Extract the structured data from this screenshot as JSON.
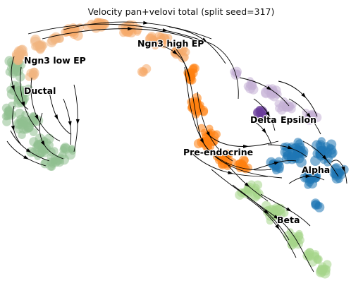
{
  "chart_data": {
    "type": "scatter",
    "title": "Velocity pan+velovi total (split seed=317)",
    "xlabel": "",
    "ylabel": "",
    "axes": "off",
    "grid": false,
    "legend": "on-data labels",
    "clusters": [
      {
        "name": "Ngn3 low EP",
        "color": "#f0b57f"
      },
      {
        "name": "Ngn3 high EP",
        "color": "#f6a96a"
      },
      {
        "name": "Ductal",
        "color": "#8fbf8f"
      },
      {
        "name": "Delta",
        "color": "#6a3d9a"
      },
      {
        "name": "Epsilon",
        "color": "#c5b0d5"
      },
      {
        "name": "Pre-endocrine",
        "color": "#ff7f0e"
      },
      {
        "name": "Alpha",
        "color": "#1f77b4"
      },
      {
        "name": "Beta",
        "color": "#a6d68a"
      }
    ],
    "labels": [
      "Ngn3 low EP",
      "Ngn3 high EP",
      "Ductal",
      "Delta",
      "Epsilon",
      "Pre-endocrine",
      "Alpha",
      "Beta"
    ],
    "overlay": "velocity streamlines with arrowheads"
  }
}
